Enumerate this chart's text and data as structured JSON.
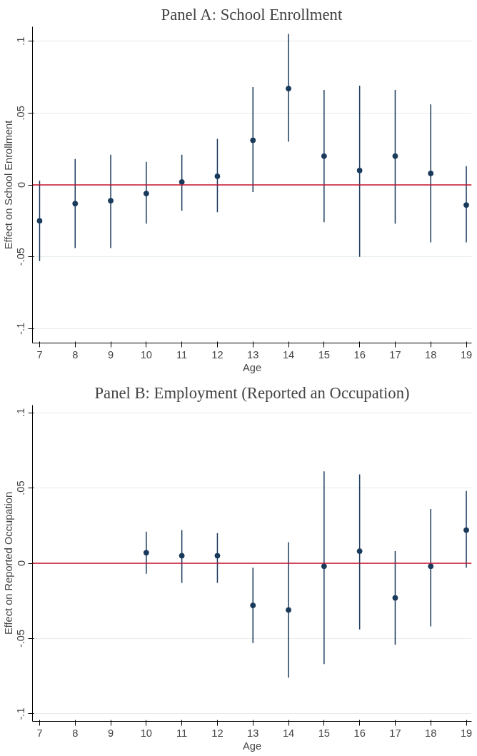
{
  "chart_data": [
    {
      "type": "scatter",
      "title": "Panel A: School Enrollment",
      "xlabel": "Age",
      "ylabel": "Effect on School Enrollment",
      "x": [
        7,
        8,
        9,
        10,
        11,
        12,
        13,
        14,
        15,
        16,
        17,
        18,
        19
      ],
      "series": [
        {
          "color": "#1a3a5c",
          "values": [
            -0.025,
            -0.013,
            -0.011,
            -0.006,
            0.002,
            0.006,
            0.031,
            0.067,
            0.02,
            0.01,
            0.02,
            0.008,
            -0.014
          ],
          "errors": [
            [
              -0.053,
              0.003
            ],
            [
              -0.044,
              0.018
            ],
            [
              -0.044,
              0.021
            ],
            [
              -0.027,
              0.016
            ],
            [
              -0.018,
              0.021
            ],
            [
              -0.019,
              0.032
            ],
            [
              -0.005,
              0.068
            ],
            [
              0.03,
              0.105
            ],
            [
              -0.026,
              0.066
            ],
            [
              -0.05,
              0.069
            ],
            [
              -0.027,
              0.066
            ],
            [
              -0.04,
              0.056
            ],
            [
              -0.04,
              0.013
            ]
          ]
        }
      ],
      "xlim": [
        6.8,
        19.15
      ],
      "xticks": [
        7,
        8,
        9,
        10,
        11,
        12,
        13,
        14,
        15,
        16,
        17,
        18,
        19
      ],
      "ylim": [
        -0.11,
        0.11
      ],
      "yticks": [
        {
          "value": -0.1,
          "label": "-.1"
        },
        {
          "value": -0.05,
          "label": "-.05"
        },
        {
          "value": 0,
          "label": "0"
        },
        {
          "value": 0.05,
          "label": ".05"
        },
        {
          "value": 0.1,
          "label": ".1"
        }
      ],
      "grid": "y",
      "marker": "circle",
      "ref_lines": [
        {
          "axis": "y",
          "value": 0,
          "color": "#c8102e"
        }
      ]
    },
    {
      "type": "scatter",
      "title": "Panel B: Employment (Reported an Occupation)",
      "xlabel": "Age",
      "ylabel": "Effect on Reported Occupation",
      "x": [
        10,
        11,
        12,
        13,
        14,
        15,
        16,
        17,
        18,
        19
      ],
      "series": [
        {
          "color": "#1a3a5c",
          "values": [
            0.007,
            0.005,
            0.005,
            -0.028,
            -0.031,
            -0.002,
            0.008,
            -0.023,
            -0.002,
            0.022
          ],
          "errors": [
            [
              -0.007,
              0.021
            ],
            [
              -0.013,
              0.022
            ],
            [
              -0.013,
              0.02
            ],
            [
              -0.053,
              -0.003
            ],
            [
              -0.076,
              0.014
            ],
            [
              -0.067,
              0.061
            ],
            [
              -0.044,
              0.059
            ],
            [
              -0.054,
              0.008
            ],
            [
              -0.042,
              0.036
            ],
            [
              -0.003,
              0.048
            ]
          ]
        }
      ],
      "xlim": [
        6.8,
        19.15
      ],
      "xticks": [
        7,
        8,
        9,
        10,
        11,
        12,
        13,
        14,
        15,
        16,
        17,
        18,
        19
      ],
      "ylim": [
        -0.105,
        0.105
      ],
      "yticks": [
        {
          "value": -0.1,
          "label": "-.1"
        },
        {
          "value": -0.05,
          "label": "-.05"
        },
        {
          "value": 0,
          "label": "0"
        },
        {
          "value": 0.05,
          "label": ".05"
        },
        {
          "value": 0.1,
          "label": ".1"
        }
      ],
      "grid": "y",
      "marker": "circle",
      "ref_lines": [
        {
          "axis": "y",
          "value": 0,
          "color": "#c8102e"
        }
      ]
    }
  ]
}
